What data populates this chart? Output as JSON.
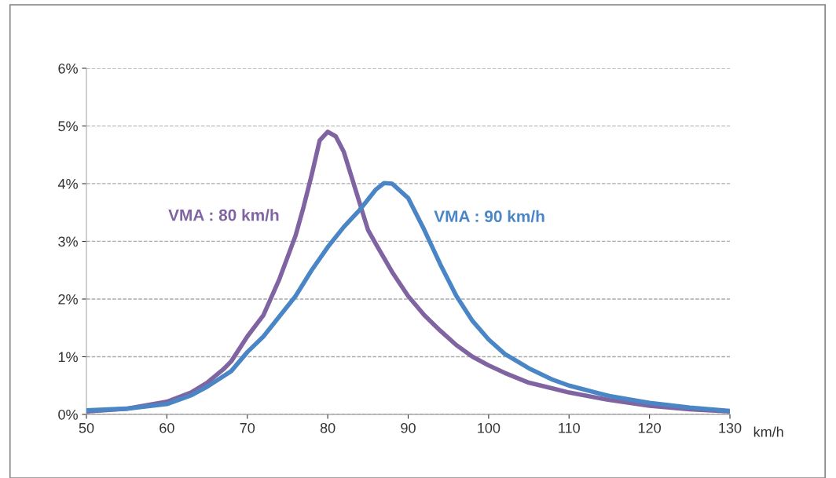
{
  "chart_data": {
    "type": "line",
    "xlabel": "km/h",
    "xlim": [
      50,
      130
    ],
    "xticks": [
      50,
      60,
      70,
      80,
      90,
      100,
      110,
      120,
      130
    ],
    "ylim": [
      0,
      6
    ],
    "yticks": [
      {
        "value": 0,
        "label": "0%"
      },
      {
        "value": 1,
        "label": "1%"
      },
      {
        "value": 2,
        "label": "2%"
      },
      {
        "value": 3,
        "label": "3%"
      },
      {
        "value": 4,
        "label": "4%"
      },
      {
        "value": 5,
        "label": "5%"
      },
      {
        "value": 6,
        "label": "6%"
      }
    ],
    "grid": "y",
    "line_style": "solid",
    "marker": "none",
    "series": [
      {
        "name": "VMA : 80 km/h",
        "color": "#8064a2",
        "x": [
          50,
          55,
          60,
          63,
          65,
          67,
          68,
          70,
          72,
          74,
          76,
          77,
          78,
          79,
          80,
          81,
          82,
          83,
          84,
          85,
          86,
          88,
          90,
          92,
          94,
          96,
          98,
          100,
          102,
          105,
          108,
          110,
          115,
          120,
          125,
          130
        ],
        "values": [
          0.05,
          0.1,
          0.22,
          0.38,
          0.55,
          0.78,
          0.92,
          1.35,
          1.72,
          2.35,
          3.1,
          3.6,
          4.15,
          4.75,
          4.9,
          4.82,
          4.55,
          4.1,
          3.65,
          3.2,
          2.95,
          2.47,
          2.05,
          1.72,
          1.45,
          1.2,
          1.0,
          0.85,
          0.72,
          0.55,
          0.45,
          0.38,
          0.25,
          0.15,
          0.09,
          0.05
        ]
      },
      {
        "name": "VMA : 90 km/h",
        "color": "#4a86c5",
        "x": [
          50,
          55,
          60,
          63,
          65,
          68,
          70,
          72,
          74,
          76,
          78,
          80,
          82,
          84,
          86,
          87,
          88,
          90,
          92,
          94,
          96,
          98,
          100,
          102,
          105,
          108,
          110,
          115,
          120,
          125,
          130
        ],
        "values": [
          0.07,
          0.1,
          0.18,
          0.33,
          0.48,
          0.75,
          1.08,
          1.35,
          1.7,
          2.05,
          2.5,
          2.9,
          3.25,
          3.55,
          3.9,
          4.01,
          4.0,
          3.75,
          3.2,
          2.6,
          2.05,
          1.62,
          1.3,
          1.05,
          0.8,
          0.6,
          0.5,
          0.32,
          0.2,
          0.12,
          0.06
        ]
      }
    ]
  }
}
